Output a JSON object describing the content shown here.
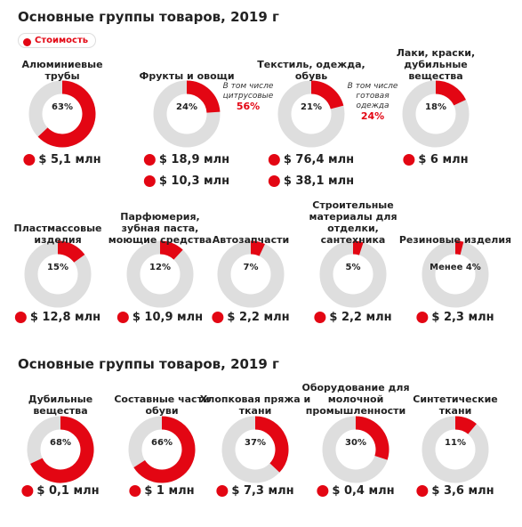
{
  "sections": [
    {
      "title": "Основные группы товаров, 2019 г",
      "legend": "Стоимость",
      "rows": [
        [
          {
            "label": "Алюминиевые трубы",
            "value": 63,
            "value_label": "63%",
            "amounts": [
              "$ 5,1 млн"
            ]
          },
          {
            "label": "Фрукты и овощи",
            "value": 24,
            "value_label": "24%",
            "amounts": [
              "$ 18,9 млн",
              "$ 10,3 млн"
            ],
            "note": {
              "text": "В том числе цитрусовые",
              "value_label": "56%"
            }
          },
          {
            "label": "Текстиль, одежда, обувь",
            "value": 21,
            "value_label": "21%",
            "amounts": [
              "$ 76,4 млн",
              "$ 38,1 млн"
            ],
            "note": {
              "text": "В том числе готовая одежда",
              "value_label": "24%"
            }
          },
          {
            "label": "Лаки, краски, дубильные вещества",
            "value": 18,
            "value_label": "18%",
            "amounts": [
              "$ 6 млн"
            ]
          }
        ],
        [
          {
            "label": "Пластмассовые изделия",
            "value": 15,
            "value_label": "15%",
            "amounts": [
              "$ 12,8 млн"
            ]
          },
          {
            "label": "Парфюмерия, зубная паста, моющие средства",
            "value": 12,
            "value_label": "12%",
            "amounts": [
              "$ 10,9 млн"
            ]
          },
          {
            "label": "Автозапчасти",
            "value": 7,
            "value_label": "7%",
            "amounts": [
              "$ 2,2 млн"
            ]
          },
          {
            "label": "Строительные материалы для отделки, сантехника",
            "value": 5,
            "value_label": "5%",
            "amounts": [
              "$ 2,2 млн"
            ]
          },
          {
            "label": "Резиновые изделия",
            "value": 4,
            "value_label": "Менее 4%",
            "amounts": [
              "$ 2,3 млн"
            ]
          }
        ]
      ]
    },
    {
      "title": "Основные группы товаров, 2019 г",
      "rows": [
        [
          {
            "label": "Дубильные вещества",
            "value": 68,
            "value_label": "68%",
            "amounts": [
              "$ 0,1 млн"
            ]
          },
          {
            "label": "Составные части обуви",
            "value": 66,
            "value_label": "66%",
            "amounts": [
              "$ 1 млн"
            ]
          },
          {
            "label": "Хлопковая пряжа и ткани",
            "value": 37,
            "value_label": "37%",
            "amounts": [
              "$ 7,3 млн"
            ]
          },
          {
            "label": "Оборудование для молочной промышленности",
            "value": 30,
            "value_label": "30%",
            "amounts": [
              "$ 0,4 млн"
            ]
          },
          {
            "label": "Синтетические ткани",
            "value": 11,
            "value_label": "11%",
            "amounts": [
              "$ 3,6 млн"
            ]
          }
        ]
      ]
    }
  ]
}
